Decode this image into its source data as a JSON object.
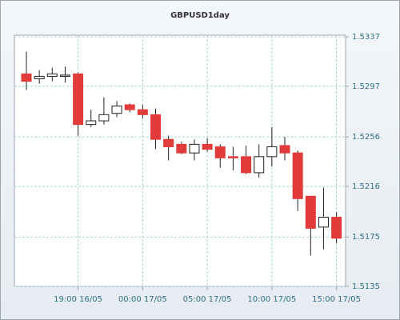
{
  "chart_data": {
    "type": "candlestick",
    "title": "GBPUSD1day",
    "categories": [
      null,
      null,
      null,
      null,
      "19:00 16/05",
      null,
      null,
      null,
      null,
      "00:00 17/05",
      null,
      null,
      null,
      null,
      "05:00 17/05",
      null,
      null,
      null,
      null,
      "10:00 17/05",
      null,
      null,
      null,
      null,
      "15:00 17/05"
    ],
    "open": [
      1.5307,
      1.5303,
      1.5305,
      1.5305,
      1.5307,
      1.5266,
      1.5269,
      1.5275,
      1.5282,
      1.5278,
      1.5274,
      1.5254,
      1.525,
      1.5243,
      1.525,
      1.5248,
      1.524,
      1.524,
      1.5227,
      1.524,
      1.5249,
      1.5243,
      1.5208,
      1.5183,
      1.5191
    ],
    "high": [
      1.5325,
      1.531,
      1.5312,
      1.5313,
      1.5308,
      1.5278,
      1.5288,
      1.5285,
      1.5283,
      1.5282,
      1.5279,
      1.5257,
      1.5252,
      1.5254,
      1.5255,
      1.525,
      1.5248,
      1.5249,
      1.525,
      1.5264,
      1.5256,
      1.5245,
      1.5208,
      1.5215,
      1.5195
    ],
    "low": [
      1.5294,
      1.5299,
      1.5301,
      1.53,
      1.5257,
      1.5264,
      1.5266,
      1.5272,
      1.5276,
      1.5271,
      1.5246,
      1.5237,
      1.5242,
      1.5237,
      1.5244,
      1.5231,
      1.5229,
      1.5226,
      1.5223,
      1.5232,
      1.5237,
      1.5196,
      1.516,
      1.5165,
      1.517
    ],
    "close": [
      1.5301,
      1.5305,
      1.5307,
      1.5306,
      1.5266,
      1.5269,
      1.5274,
      1.5281,
      1.5278,
      1.5274,
      1.5254,
      1.5248,
      1.5243,
      1.525,
      1.5246,
      1.5239,
      1.5239,
      1.5227,
      1.524,
      1.5248,
      1.5243,
      1.5206,
      1.5182,
      1.5191,
      1.5174
    ],
    "up_color": "#ffffff",
    "down_color": "#e23b3b",
    "ylim": [
      1.5135,
      1.5337
    ],
    "yticks": [
      1.5135,
      1.5175,
      1.5216,
      1.5256,
      1.5297,
      1.5337
    ],
    "grid": true
  }
}
